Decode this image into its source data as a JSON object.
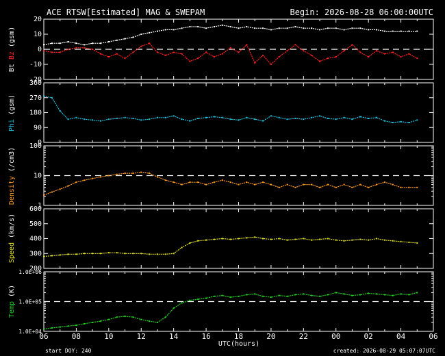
{
  "header": {
    "title": "ACE RTSW[Estimated] MAG & SWEPAM",
    "begin": "Begin: 2026-08-28 06:00:00UTC"
  },
  "footer": {
    "start_doy": "start DOY: 240",
    "created": "created: 2026-08-29 05:07:07UTC"
  },
  "colors": {
    "bt": "#ffffff",
    "bz": "#ff2020",
    "phi": "#20c0e0",
    "density": "#ff9a1e",
    "speed": "#e0e020",
    "temp": "#20d020"
  },
  "chart_data": [
    {
      "type": "scatter",
      "panel": "mag",
      "ylabel_parts": [
        "Bt",
        "Bz",
        "(gsm)"
      ],
      "yticks": [
        "20",
        "10",
        "0",
        "-10",
        "-20"
      ],
      "ylim": [
        -20,
        20
      ],
      "reference_line": 0,
      "series": [
        {
          "name": "Bt",
          "x": [
            0,
            0.5,
            1,
            1.5,
            2,
            2.5,
            3,
            3.5,
            4,
            4.5,
            5,
            5.5,
            6,
            6.5,
            7,
            7.5,
            8,
            8.5,
            9,
            9.5,
            10,
            10.5,
            11,
            11.5,
            12,
            12.5,
            13,
            13.5,
            14,
            14.5,
            15,
            15.5,
            16,
            16.5,
            17,
            17.5,
            18,
            18.5,
            19,
            19.5,
            20,
            20.5,
            21,
            21.5,
            22,
            22.5,
            23
          ],
          "y": [
            3,
            4,
            4,
            5,
            4,
            3,
            4,
            4,
            5,
            6,
            7,
            8,
            10,
            11,
            12,
            13,
            13,
            14,
            15,
            15,
            14,
            15,
            16,
            15,
            14,
            15,
            14,
            14,
            13,
            14,
            14,
            15,
            14,
            14,
            13,
            14,
            14,
            13,
            14,
            14,
            13,
            13,
            12,
            12,
            12,
            12,
            12
          ]
        },
        {
          "name": "Bz",
          "x": [
            0,
            0.5,
            1,
            1.5,
            2,
            2.5,
            3,
            3.5,
            4,
            4.5,
            5,
            5.5,
            6,
            6.5,
            7,
            7.5,
            8,
            8.5,
            9,
            9.5,
            10,
            10.5,
            11,
            11.5,
            12,
            12.5,
            13,
            13.5,
            14,
            14.5,
            15,
            15.5,
            16,
            16.5,
            17,
            17.5,
            18,
            18.5,
            19,
            19.5,
            20,
            20.5,
            21,
            21.5,
            22,
            22.5,
            23
          ],
          "y": [
            -1,
            -2,
            -2,
            0,
            1,
            1,
            0,
            -3,
            -5,
            -3,
            -6,
            -2,
            2,
            4,
            -2,
            -4,
            -2,
            -3,
            -8,
            -6,
            -2,
            -5,
            -3,
            1,
            -2,
            3,
            -9,
            -4,
            -10,
            -5,
            -1,
            3,
            -1,
            -4,
            -8,
            -6,
            -5,
            -1,
            3,
            -2,
            -5,
            -1,
            -3,
            -2,
            -5,
            -3,
            -6
          ]
        }
      ]
    },
    {
      "type": "scatter",
      "panel": "phi",
      "ylabel": "Phi (gsm)",
      "yticks": [
        "360",
        "270",
        "180",
        "90",
        "0"
      ],
      "ylim": [
        0,
        360
      ],
      "series": [
        {
          "name": "Phi",
          "x": [
            0,
            0.5,
            1,
            1.5,
            2,
            2.5,
            3,
            3.5,
            4,
            4.5,
            5,
            5.5,
            6,
            6.5,
            7,
            7.5,
            8,
            8.5,
            9,
            9.5,
            10,
            10.5,
            11,
            11.5,
            12,
            12.5,
            13,
            13.5,
            14,
            14.5,
            15,
            15.5,
            16,
            16.5,
            17,
            17.5,
            18,
            18.5,
            19,
            19.5,
            20,
            20.5,
            21,
            21.5,
            22,
            22.5,
            23
          ],
          "y": [
            280,
            270,
            190,
            140,
            150,
            140,
            135,
            130,
            140,
            145,
            150,
            145,
            135,
            140,
            150,
            150,
            160,
            140,
            130,
            145,
            150,
            155,
            150,
            140,
            135,
            150,
            140,
            130,
            160,
            150,
            140,
            145,
            140,
            150,
            160,
            145,
            140,
            150,
            140,
            155,
            145,
            150,
            130,
            120,
            125,
            120,
            135
          ]
        }
      ]
    },
    {
      "type": "scatter",
      "panel": "density",
      "ylabel": "Density (/cm3)",
      "yscale": "log",
      "yticks": [
        "100",
        "10",
        "1"
      ],
      "ylim": [
        1,
        100
      ],
      "reference_line": 10,
      "series": [
        {
          "name": "Density",
          "x": [
            0,
            0.5,
            1,
            1.5,
            2,
            2.5,
            3,
            3.5,
            4,
            4.5,
            5,
            5.5,
            6,
            6.5,
            7,
            7.5,
            8,
            8.5,
            9,
            9.5,
            10,
            10.5,
            11,
            11.5,
            12,
            12.5,
            13,
            13.5,
            14,
            14.5,
            15,
            15.5,
            16,
            16.5,
            17,
            17.5,
            18,
            18.5,
            19,
            19.5,
            20,
            20.5,
            21,
            21.5,
            22,
            22.5,
            23
          ],
          "y": [
            2.2,
            2.8,
            3.5,
            4.5,
            6,
            7,
            8,
            9,
            10,
            11,
            12,
            12,
            13,
            12,
            9,
            7,
            6,
            5,
            6,
            6,
            5,
            6,
            7,
            6,
            5,
            6,
            5,
            6,
            5,
            4,
            5,
            4,
            5,
            5,
            4,
            5,
            4,
            5,
            4,
            5,
            4,
            5,
            6,
            5,
            4,
            4,
            4
          ]
        }
      ]
    },
    {
      "type": "scatter",
      "panel": "speed",
      "ylabel": "Speed (km/s)",
      "yticks": [
        "600",
        "500",
        "400",
        "300",
        "200"
      ],
      "ylim": [
        200,
        600
      ],
      "series": [
        {
          "name": "Speed",
          "x": [
            0,
            0.5,
            1,
            1.5,
            2,
            2.5,
            3,
            3.5,
            4,
            4.5,
            5,
            5.5,
            6,
            6.5,
            7,
            7.5,
            8,
            8.5,
            9,
            9.5,
            10,
            10.5,
            11,
            11.5,
            12,
            12.5,
            13,
            13.5,
            14,
            14.5,
            15,
            15.5,
            16,
            16.5,
            17,
            17.5,
            18,
            18.5,
            19,
            19.5,
            20,
            20.5,
            21,
            21.5,
            22,
            22.5,
            23
          ],
          "y": [
            280,
            285,
            290,
            295,
            295,
            300,
            300,
            300,
            305,
            305,
            300,
            300,
            300,
            295,
            295,
            295,
            300,
            340,
            370,
            385,
            390,
            395,
            400,
            395,
            400,
            405,
            410,
            400,
            395,
            400,
            390,
            395,
            400,
            390,
            395,
            400,
            390,
            385,
            390,
            395,
            390,
            400,
            390,
            385,
            380,
            375,
            370
          ]
        }
      ]
    },
    {
      "type": "scatter",
      "panel": "temp",
      "ylabel": "Temp (K)",
      "yscale": "log",
      "yticks": [
        "1.0E+06",
        "1.0E+05",
        "1.0E+04"
      ],
      "ylim": [
        10000,
        1000000
      ],
      "reference_line": 100000,
      "series": [
        {
          "name": "Temp",
          "x": [
            0,
            0.5,
            1,
            1.5,
            2,
            2.5,
            3,
            3.5,
            4,
            4.5,
            5,
            5.5,
            6,
            6.5,
            7,
            7.5,
            8,
            8.5,
            9,
            9.5,
            10,
            10.5,
            11,
            11.5,
            12,
            12.5,
            13,
            13.5,
            14,
            14.5,
            15,
            15.5,
            16,
            16.5,
            17,
            17.5,
            18,
            18.5,
            19,
            19.5,
            20,
            20.5,
            21,
            21.5,
            22,
            22.5,
            23
          ],
          "y": [
            12000,
            13000,
            14000,
            15000,
            16000,
            18000,
            20000,
            22000,
            25000,
            30000,
            32000,
            30000,
            25000,
            22000,
            20000,
            30000,
            60000,
            90000,
            110000,
            120000,
            130000,
            150000,
            160000,
            140000,
            150000,
            170000,
            180000,
            150000,
            140000,
            160000,
            150000,
            170000,
            180000,
            160000,
            150000,
            170000,
            200000,
            180000,
            160000,
            170000,
            190000,
            180000,
            170000,
            160000,
            180000,
            170000,
            200000
          ]
        }
      ]
    }
  ],
  "xaxis": {
    "title": "UTC(hours)",
    "ticks": [
      "06",
      "08",
      "10",
      "12",
      "14",
      "16",
      "18",
      "20",
      "22",
      "00",
      "02",
      "04",
      "06"
    ],
    "range_hours": [
      0,
      24
    ]
  }
}
